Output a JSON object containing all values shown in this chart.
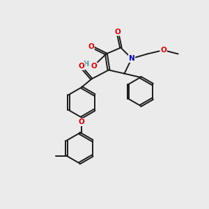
{
  "bg": "#ebebeb",
  "bc": "#1a1a1a",
  "lw": 1.4,
  "dbo": 0.048,
  "OC": "#dd0000",
  "NC": "#0000cc",
  "HC": "#4499aa",
  "fs": 7.5,
  "figsize": [
    3.0,
    3.0
  ],
  "dpi": 100,
  "xlim": [
    0,
    10
  ],
  "ylim": [
    0,
    10
  ]
}
